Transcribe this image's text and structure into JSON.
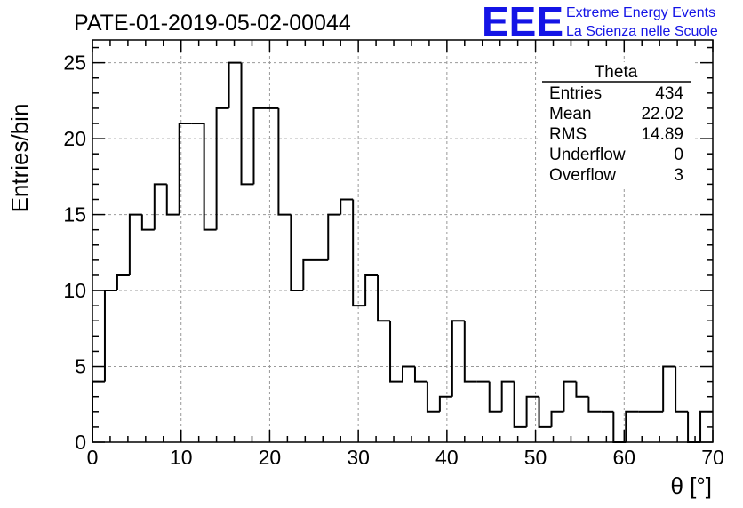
{
  "header": {
    "run_title": "PATE-01-2019-05-02-00044"
  },
  "logo": {
    "mark": "EEE",
    "line1": "Extreme Energy Events",
    "line2": "La Scienza nelle Scuole",
    "color": "#1414e6"
  },
  "stats_box": {
    "title": "Theta",
    "rows": [
      {
        "label": "Entries",
        "value": "434"
      },
      {
        "label": "Mean",
        "value": "22.02"
      },
      {
        "label": "RMS",
        "value": "14.89"
      },
      {
        "label": "Underflow",
        "value": "0"
      },
      {
        "label": "Overflow",
        "value": "3"
      }
    ]
  },
  "chart_data": {
    "type": "histogram",
    "xlabel": "θ [°]",
    "ylabel": "Entries/bin",
    "xlim": [
      0,
      70
    ],
    "ylim": [
      0,
      26.5
    ],
    "bin_width": 1.4,
    "bin_start": 0,
    "values": [
      4,
      10,
      11,
      15,
      14,
      17,
      15,
      21,
      21,
      14,
      22,
      25,
      17,
      22,
      22,
      15,
      10,
      12,
      12,
      15,
      16,
      9,
      11,
      8,
      4,
      5,
      4,
      2,
      3,
      8,
      4,
      4,
      2,
      4,
      1,
      3,
      1,
      2,
      4,
      3,
      2,
      2,
      0,
      2,
      2,
      2,
      5,
      2,
      0,
      2
    ],
    "x_ticks": [
      0,
      10,
      20,
      30,
      40,
      50,
      60,
      70
    ],
    "y_ticks": [
      0,
      5,
      10,
      15,
      20,
      25
    ],
    "grid": true,
    "line_color": "#000000"
  }
}
